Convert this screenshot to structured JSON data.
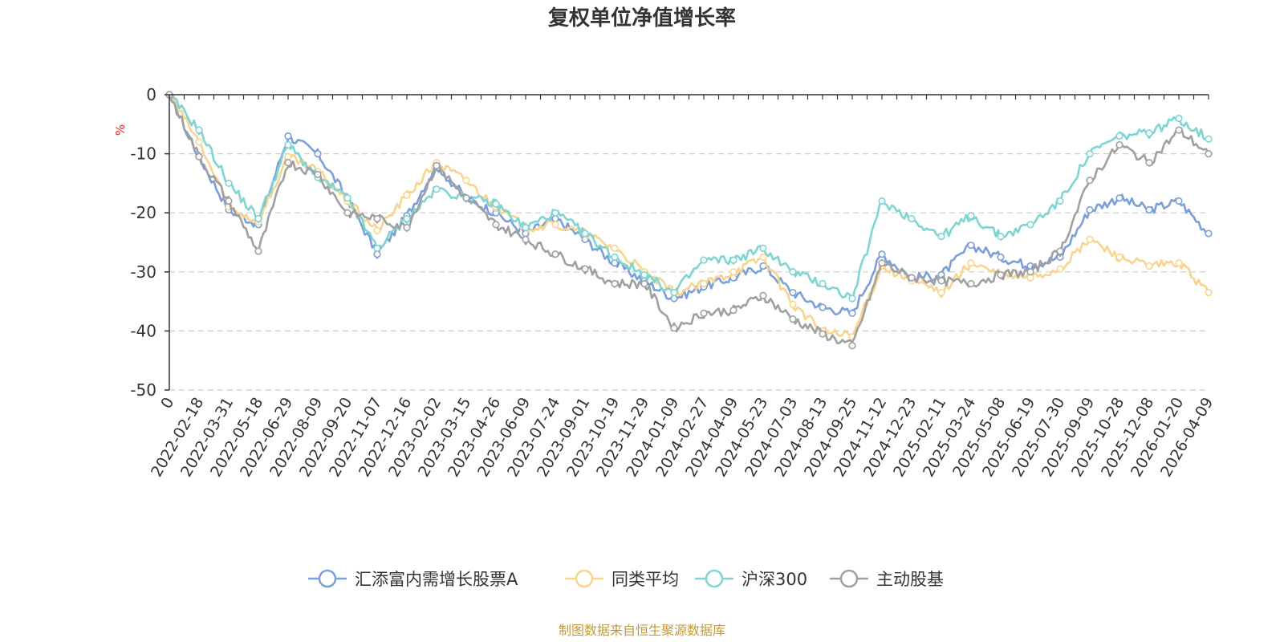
{
  "chart_data": {
    "type": "line",
    "title": "复权单位净值增长率",
    "ylabel": "%",
    "ylim": [
      -50,
      0
    ],
    "yticks": [
      0,
      -10,
      -20,
      -30,
      -40,
      -50
    ],
    "grid": "horizontal dashed",
    "xlabels": [
      "0",
      "2022-02-18",
      "2022-03-31",
      "2022-05-18",
      "2022-06-29",
      "2022-08-09",
      "2022-09-20",
      "2022-11-07",
      "2022-12-16",
      "2023-02-02",
      "2023-03-15",
      "2023-04-26",
      "2023-06-09",
      "2023-07-24",
      "2023-09-01",
      "2023-10-19",
      "2023-11-29",
      "2024-01-09",
      "2024-02-27",
      "2024-04-09",
      "2024-05-23",
      "2024-07-03",
      "2024-08-13",
      "2024-09-25",
      "2024-11-12",
      "2024-12-23",
      "2025-02-11",
      "2025-03-24",
      "2025-05-08",
      "2025-06-19",
      "2025-07-30",
      "2025-09-09",
      "2025-10-28",
      "2025-12-08",
      "2026-01-20",
      "2026-04-09"
    ],
    "legend_position": "bottom-center",
    "series": [
      {
        "name": "汇添富内需增长股票A",
        "color": "#7b9fd8",
        "values": [
          0,
          -10.5,
          -19.5,
          -22,
          -7,
          -10,
          -17.5,
          -27,
          -20.5,
          -12,
          -17.5,
          -20,
          -23.5,
          -21,
          -24.5,
          -28.5,
          -31.5,
          -34.5,
          -32.5,
          -31,
          -29,
          -33.5,
          -36,
          -37,
          -27,
          -31,
          -30.5,
          -25.5,
          -27.5,
          -29,
          -27.5,
          -19.5,
          -17.5,
          -19.5,
          -18,
          -23.5
        ]
      },
      {
        "name": "同类平均",
        "color": "#f9d48e",
        "values": [
          0,
          -8,
          -19,
          -21.5,
          -10.5,
          -13,
          -18,
          -23,
          -17,
          -11.5,
          -14.5,
          -19,
          -22.5,
          -22,
          -23.5,
          -26,
          -30,
          -33.5,
          -32,
          -30,
          -27.5,
          -35.5,
          -40,
          -41,
          -29,
          -31.5,
          -33.5,
          -28.5,
          -30.5,
          -31,
          -29.5,
          -24.5,
          -27.5,
          -29,
          -28.5,
          -33.5
        ]
      },
      {
        "name": "沪深300",
        "color": "#7fd4d4",
        "values": [
          0,
          -6,
          -15,
          -21,
          -8.5,
          -14,
          -17.5,
          -26,
          -21,
          -16,
          -17.5,
          -18.5,
          -22.5,
          -20,
          -23.5,
          -27.5,
          -30.5,
          -33.5,
          -28,
          -28,
          -26,
          -30,
          -32,
          -34.5,
          -18,
          -21,
          -24,
          -20.5,
          -24,
          -22,
          -18,
          -10,
          -7,
          -6.5,
          -4,
          -7.5
        ]
      },
      {
        "name": "主动股基",
        "color": "#a0a0a0",
        "values": [
          0,
          -10.5,
          -18,
          -26.5,
          -11.5,
          -13.5,
          -20,
          -21,
          -22.5,
          -12,
          -17.5,
          -22,
          -24.5,
          -27,
          -29.5,
          -32,
          -32,
          -39.5,
          -37,
          -36.5,
          -34,
          -38,
          -40.5,
          -42.5,
          -28.5,
          -31,
          -31.5,
          -32,
          -30.5,
          -30,
          -26.5,
          -14.5,
          -8.5,
          -11.5,
          -6,
          -10
        ]
      }
    ]
  },
  "source_text": "制图数据来自恒生聚源数据库",
  "colors": {
    "axis": "#333333",
    "grid": "#cccccc",
    "unit": "#e02020",
    "source": "#c39a3a"
  }
}
